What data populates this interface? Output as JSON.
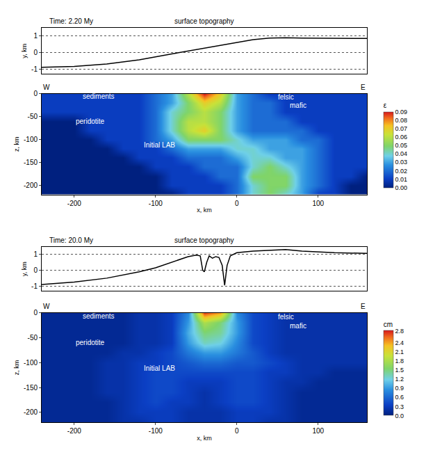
{
  "chart_data": [
    {
      "type": "heatmap",
      "time": "Time: 2.20 My",
      "topography": {
        "type": "line",
        "title": "surface topography",
        "ylabel": "y, km",
        "color": "#000000",
        "grid": true,
        "xlim": [
          -240,
          160
        ],
        "ylim": [
          -1.3,
          1.45
        ],
        "yticks": [
          -1,
          0,
          1
        ],
        "x": [
          -240,
          -200,
          -160,
          -120,
          -80,
          -40,
          0,
          20,
          40,
          60,
          80,
          120,
          160
        ],
        "values": [
          -0.9,
          -0.85,
          -0.7,
          -0.45,
          -0.1,
          0.25,
          0.6,
          0.75,
          0.85,
          0.87,
          0.85,
          0.83,
          0.82
        ]
      },
      "section": {
        "left": "W",
        "right": "E",
        "xlabel": "x, km",
        "ylabel": "z, km",
        "xlim": [
          -240,
          160
        ],
        "ylim": [
          -220,
          0
        ],
        "xticks": [
          -200,
          -100,
          0,
          100
        ],
        "yticks": [
          0,
          -50,
          -100,
          -150,
          -200
        ],
        "x": [
          -240,
          -220,
          -200,
          -180,
          -160,
          -140,
          -120,
          -100,
          -80,
          -60,
          -40,
          -20,
          0,
          20,
          40,
          60,
          80,
          100,
          120,
          140,
          160
        ],
        "z": [
          0,
          -20,
          -40,
          -60,
          -80,
          -100,
          -120,
          -140,
          -160,
          -180,
          -200,
          -220
        ],
        "cells": [
          [
            0.01,
            0.01,
            0.01,
            0.01,
            0.01,
            0.01,
            0.01,
            0.02,
            0.03,
            0.06,
            0.09,
            0.07,
            0.03,
            0.02,
            0.01,
            0.01,
            0.01,
            0.01,
            0.01,
            0.01,
            0.01
          ],
          [
            0.01,
            0.01,
            0.01,
            0.01,
            0.01,
            0.01,
            0.01,
            0.02,
            0.03,
            0.05,
            0.07,
            0.06,
            0.03,
            0.02,
            0.02,
            0.01,
            0.01,
            0.01,
            0.01,
            0.01,
            0.01
          ],
          [
            0.01,
            0.01,
            0.01,
            0.01,
            0.01,
            0.01,
            0.01,
            0.02,
            0.04,
            0.05,
            0.06,
            0.05,
            0.03,
            0.02,
            0.02,
            0.01,
            0.01,
            0.01,
            0.01,
            0.01,
            0.01
          ],
          [
            0,
            0,
            0,
            0.01,
            0.01,
            0.01,
            0.01,
            0.02,
            0.04,
            0.06,
            0.06,
            0.05,
            0.03,
            0.02,
            0.02,
            0.02,
            0.01,
            0.01,
            0.01,
            0.01,
            0.01
          ],
          [
            0,
            0,
            0,
            0.01,
            0.01,
            0.01,
            0.01,
            0.02,
            0.04,
            0.06,
            0.07,
            0.05,
            0.03,
            0.02,
            0.02,
            0.02,
            0.02,
            0.01,
            0.01,
            0.01,
            0.01
          ],
          [
            0,
            0,
            0,
            0,
            0.01,
            0.01,
            0.01,
            0.02,
            0.03,
            0.05,
            0.05,
            0.05,
            0.04,
            0.03,
            0.03,
            0.03,
            0.02,
            0.02,
            0.01,
            0.01,
            0.01
          ],
          [
            0,
            0,
            0,
            0,
            0,
            0.01,
            0.01,
            0.01,
            0.02,
            0.03,
            0.03,
            0.03,
            0.04,
            0.04,
            0.03,
            0.03,
            0.03,
            0.02,
            0.01,
            0.01,
            0.01
          ],
          [
            0,
            0,
            0,
            0,
            0,
            0,
            0.01,
            0.01,
            0.01,
            0.02,
            0.02,
            0.02,
            0.03,
            0.04,
            0.04,
            0.03,
            0.03,
            0.02,
            0.01,
            0.01,
            0.01
          ],
          [
            0,
            0,
            0,
            0,
            0,
            0,
            0,
            0.01,
            0.01,
            0.01,
            0.02,
            0.02,
            0.02,
            0.04,
            0.05,
            0.04,
            0.03,
            0.02,
            0.01,
            0.01,
            0.01
          ],
          [
            0,
            0,
            0,
            0,
            0,
            0,
            0,
            0,
            0.01,
            0.01,
            0.01,
            0.02,
            0.02,
            0.05,
            0.05,
            0.05,
            0.03,
            0.02,
            0.01,
            0.01,
            0
          ],
          [
            0,
            0,
            0,
            0,
            0,
            0,
            0,
            0,
            0.01,
            0.01,
            0.01,
            0.01,
            0.02,
            0.04,
            0.05,
            0.05,
            0.03,
            0.02,
            0.01,
            0,
            0
          ],
          [
            0,
            0,
            0,
            0,
            0,
            0,
            0,
            0,
            0,
            0.01,
            0.01,
            0.01,
            0.02,
            0.04,
            0.05,
            0.04,
            0.03,
            0.01,
            0.01,
            0,
            0
          ]
        ],
        "colorbar": {
          "title": "ε",
          "range": [
            0,
            0.09
          ],
          "ticks": [
            {
              "value": 0,
              "label": "0.00"
            },
            {
              "value": 0.01,
              "label": "0.01"
            },
            {
              "value": 0.02,
              "label": "0.02"
            },
            {
              "value": 0.03,
              "label": "0.03"
            },
            {
              "value": 0.04,
              "label": "0.04"
            },
            {
              "value": 0.05,
              "label": "0.05"
            },
            {
              "value": 0.06,
              "label": "0.06"
            },
            {
              "value": 0.07,
              "label": "0.07"
            },
            {
              "value": 0.08,
              "label": "0.08"
            },
            {
              "value": 0.09,
              "label": "0.09"
            }
          ]
        },
        "labels": [
          {
            "text": "sediments",
            "x": -170,
            "z": -6
          },
          {
            "text": "felsic",
            "x": 60,
            "z": -8
          },
          {
            "text": "mafic",
            "x": 75,
            "z": -26
          },
          {
            "text": "peridotite",
            "x": -180,
            "z": -60
          },
          {
            "text": "Initial LAB",
            "x": -95,
            "z": -112
          }
        ]
      }
    },
    {
      "type": "heatmap",
      "time": "Time: 20.0 My",
      "topography": {
        "type": "line",
        "title": "surface topography",
        "ylabel": "y, km",
        "color": "#000000",
        "grid": true,
        "xlim": [
          -240,
          160
        ],
        "ylim": [
          -1.3,
          1.45
        ],
        "yticks": [
          -1,
          0,
          1
        ],
        "x": [
          -240,
          -200,
          -160,
          -120,
          -100,
          -80,
          -60,
          -50,
          -45,
          -42,
          -40,
          -37,
          -34,
          -30,
          -26,
          -22,
          -18,
          -15,
          -12,
          -8,
          0,
          20,
          40,
          60,
          80,
          120,
          160
        ],
        "values": [
          -0.9,
          -0.75,
          -0.5,
          -0.1,
          0.15,
          0.5,
          0.85,
          0.95,
          0.9,
          0.0,
          -0.1,
          0.5,
          0.9,
          0.75,
          0.85,
          0.8,
          0.3,
          -0.95,
          0.3,
          0.9,
          1.1,
          1.2,
          1.25,
          1.3,
          1.2,
          1.1,
          1.05
        ]
      },
      "section": {
        "left": "W",
        "right": "E",
        "xlabel": "x, km",
        "ylabel": "z, km",
        "xlim": [
          -240,
          160
        ],
        "ylim": [
          -220,
          0
        ],
        "xticks": [
          -200,
          -100,
          0,
          100
        ],
        "yticks": [
          0,
          -50,
          -100,
          -150,
          -200
        ],
        "x": [
          -240,
          -220,
          -200,
          -180,
          -160,
          -140,
          -120,
          -100,
          -80,
          -60,
          -40,
          -20,
          0,
          20,
          40,
          60,
          80,
          100,
          120,
          140,
          160
        ],
        "z": [
          0,
          -20,
          -40,
          -60,
          -80,
          -100,
          -120,
          -140,
          -160,
          -180,
          -200,
          -220
        ],
        "cells": [
          [
            0.1,
            0.1,
            0.1,
            0.1,
            0.1,
            0.1,
            0.2,
            0.2,
            0.3,
            0.8,
            2.7,
            2.4,
            0.8,
            0.4,
            0.3,
            0.2,
            0.2,
            0.2,
            0.2,
            0.2,
            0.2
          ],
          [
            0.1,
            0.1,
            0.1,
            0.1,
            0.1,
            0.1,
            0.2,
            0.2,
            0.3,
            0.9,
            1.8,
            1.5,
            0.9,
            0.4,
            0.3,
            0.2,
            0.2,
            0.2,
            0.2,
            0.2,
            0.2
          ],
          [
            0.1,
            0.1,
            0.1,
            0.1,
            0.1,
            0.1,
            0.2,
            0.2,
            0.3,
            1.0,
            1.5,
            1.4,
            0.9,
            0.4,
            0.3,
            0.2,
            0.2,
            0.2,
            0.2,
            0.2,
            0.2
          ],
          [
            0.1,
            0.1,
            0.1,
            0.1,
            0.1,
            0.1,
            0.2,
            0.2,
            0.3,
            0.9,
            1.3,
            1.2,
            0.8,
            0.4,
            0.3,
            0.2,
            0.2,
            0.2,
            0.2,
            0.2,
            0.2
          ],
          [
            0.1,
            0.1,
            0.1,
            0.1,
            0.1,
            0.2,
            0.2,
            0.3,
            0.4,
            0.7,
            0.9,
            0.9,
            0.7,
            0.5,
            0.3,
            0.2,
            0.2,
            0.2,
            0.2,
            0.2,
            0.2
          ],
          [
            0.1,
            0.1,
            0.1,
            0.1,
            0.2,
            0.2,
            0.3,
            0.3,
            0.4,
            0.5,
            0.6,
            0.6,
            0.5,
            0.5,
            0.4,
            0.3,
            0.2,
            0.2,
            0.2,
            0.2,
            0.2
          ],
          [
            0.1,
            0.1,
            0.1,
            0.1,
            0.2,
            0.2,
            0.3,
            0.4,
            0.4,
            0.4,
            0.4,
            0.4,
            0.4,
            0.4,
            0.3,
            0.3,
            0.2,
            0.2,
            0.1,
            0.1,
            0.1
          ],
          [
            0.1,
            0.1,
            0.1,
            0.1,
            0.2,
            0.2,
            0.3,
            0.4,
            0.4,
            0.3,
            0.3,
            0.3,
            0.4,
            0.4,
            0.3,
            0.2,
            0.2,
            0.1,
            0.1,
            0.1,
            0.1
          ],
          [
            0.1,
            0.1,
            0.1,
            0.1,
            0.2,
            0.2,
            0.3,
            0.4,
            0.4,
            0.3,
            0.2,
            0.3,
            0.4,
            0.4,
            0.3,
            0.2,
            0.1,
            0.1,
            0.1,
            0.1,
            0.1
          ],
          [
            0.1,
            0.1,
            0.1,
            0.1,
            0.1,
            0.2,
            0.3,
            0.4,
            0.3,
            0.3,
            0.2,
            0.3,
            0.4,
            0.4,
            0.3,
            0.2,
            0.1,
            0.1,
            0.1,
            0.1,
            0.1
          ],
          [
            0.1,
            0.1,
            0.1,
            0.1,
            0.1,
            0.2,
            0.3,
            0.3,
            0.3,
            0.2,
            0.2,
            0.2,
            0.3,
            0.3,
            0.3,
            0.2,
            0.1,
            0.1,
            0.1,
            0.1,
            0.1
          ],
          [
            0.1,
            0.1,
            0.1,
            0.1,
            0.1,
            0.2,
            0.2,
            0.3,
            0.3,
            0.2,
            0.2,
            0.2,
            0.3,
            0.3,
            0.2,
            0.2,
            0.1,
            0.1,
            0.1,
            0.1,
            0.1
          ]
        ],
        "colorbar": {
          "title": "cm",
          "range": [
            0,
            2.8
          ],
          "ticks": [
            {
              "value": 0,
              "label": "0.0"
            },
            0.3,
            0.6,
            0.9,
            1.2,
            1.5,
            1.8,
            2.1,
            2.4,
            2.8
          ]
        },
        "labels": [
          {
            "text": "sediments",
            "x": -170,
            "z": -6
          },
          {
            "text": "felsic",
            "x": 60,
            "z": -8
          },
          {
            "text": "mafic",
            "x": 75,
            "z": -26
          },
          {
            "text": "peridotite",
            "x": -180,
            "z": -60
          },
          {
            "text": "Initial LAB",
            "x": -95,
            "z": -112
          }
        ]
      }
    }
  ]
}
